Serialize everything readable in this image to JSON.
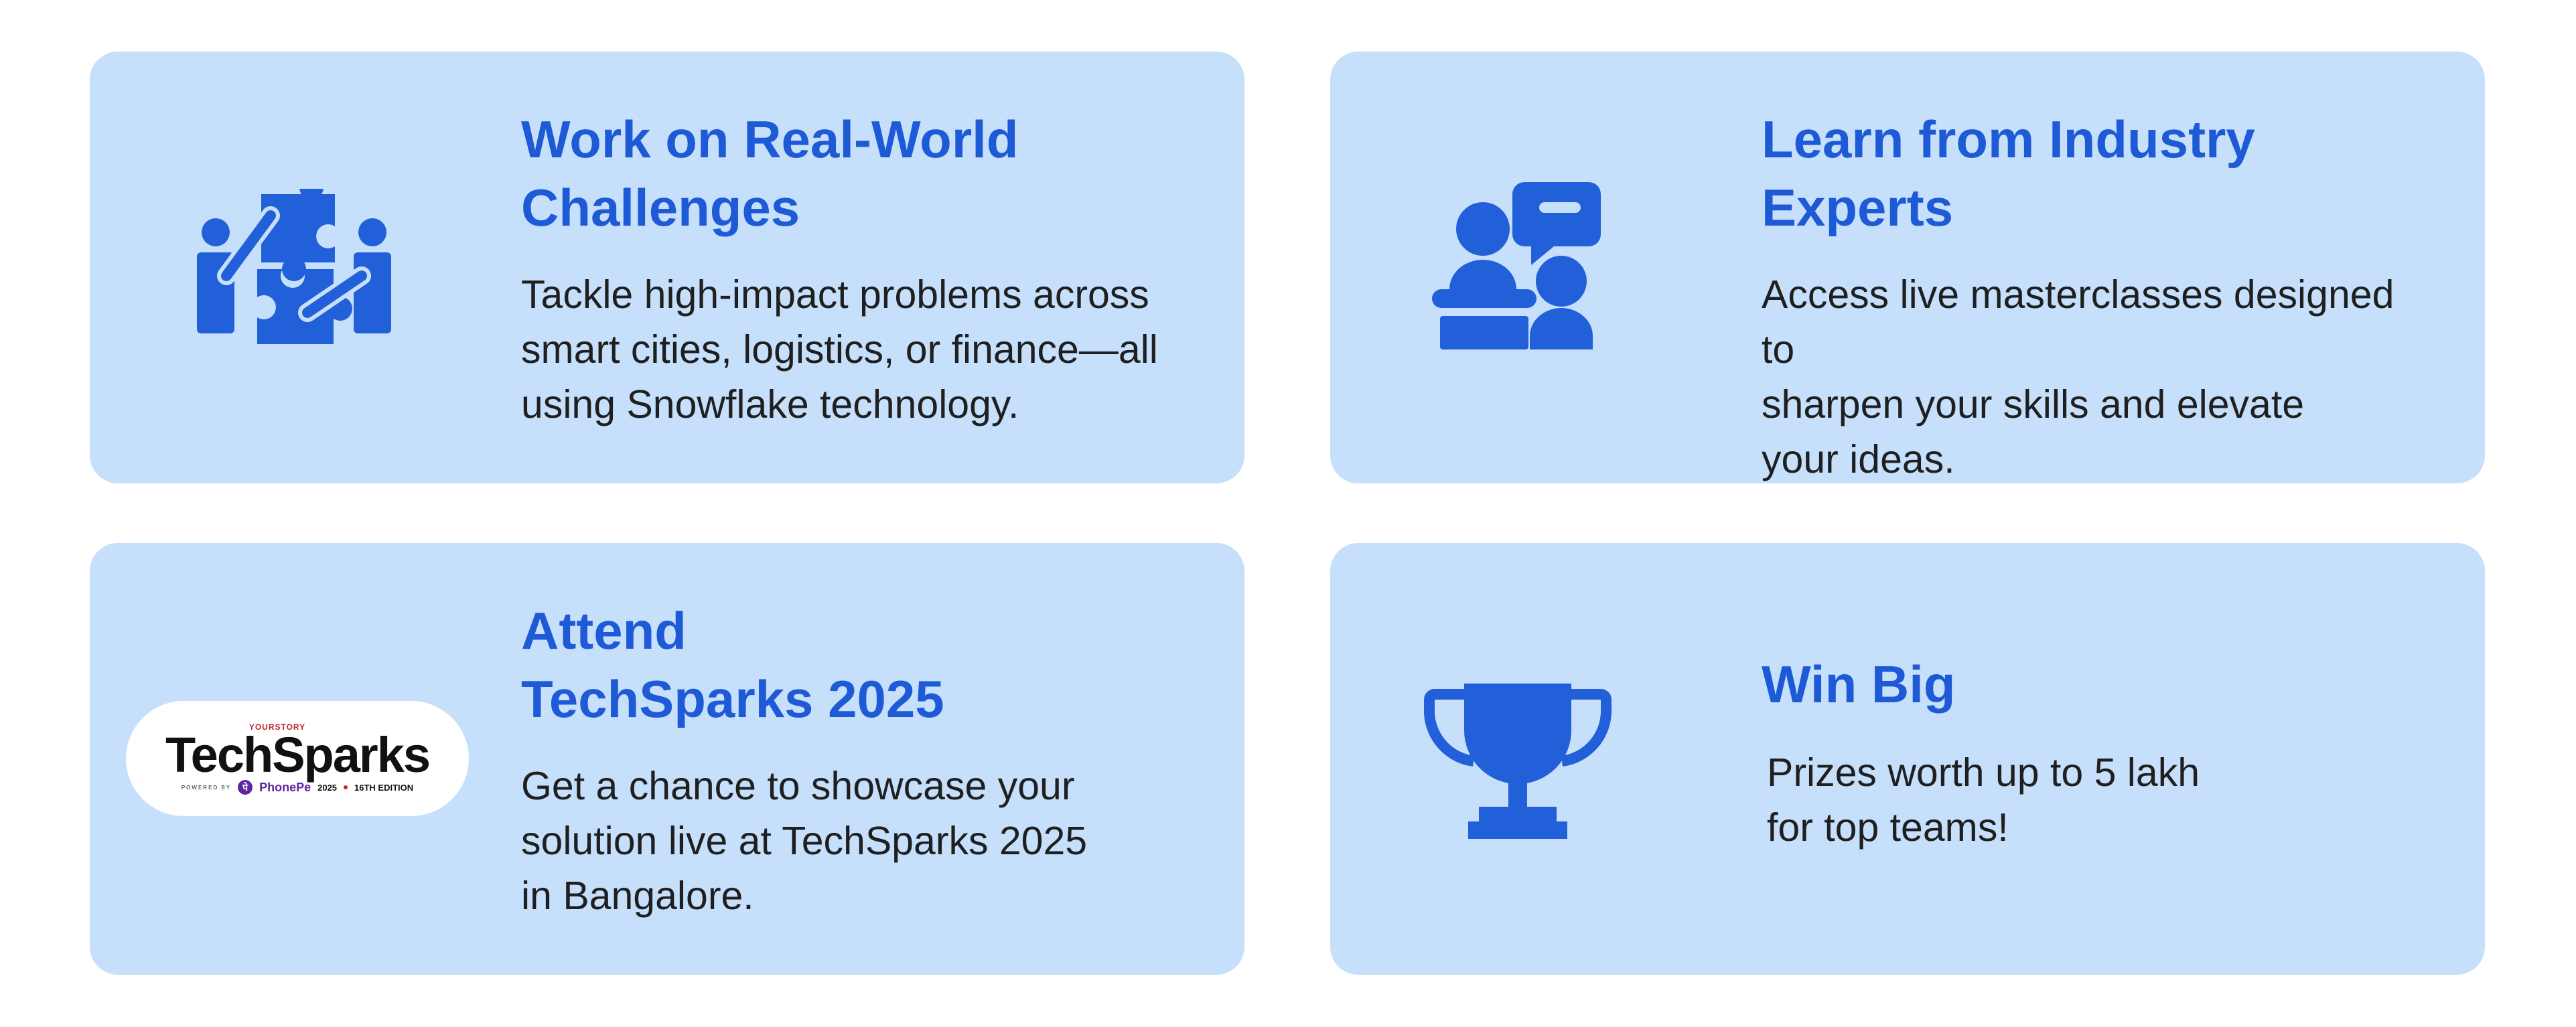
{
  "colors": {
    "card_background": "#c6dffb",
    "title_color": "#1f5ad6",
    "icon_color": "#2160d8",
    "body_text": "#1f1f1f"
  },
  "cards": [
    {
      "icon": "puzzle-people-icon",
      "title": "Work on Real-World\nChallenges",
      "description": "Tackle high-impact problems across\nsmart cities, logistics, or finance—all\nusing Snowflake technology."
    },
    {
      "icon": "presenter-speech-bubble-icon",
      "title": "Learn from Industry\nExperts",
      "description": "Access live masterclasses designed to\nsharpen your skills and elevate\nyour ideas."
    },
    {
      "icon": "techsparks-logo",
      "title": "Attend\nTechSparks 2025",
      "description": "Get a chance to showcase your\nsolution live at TechSparks 2025\nin Bangalore.",
      "logo": {
        "top": "YOURSTORY",
        "name": "TechSparks",
        "powered_by": "POWERED BY",
        "sponsor_mark": "पे",
        "sponsor": "PhonePe",
        "year": "2025",
        "edition": "16TH EDITION"
      }
    },
    {
      "icon": "trophy-icon",
      "title": "Win Big",
      "description": "Prizes worth up to 5 lakh\nfor top teams!"
    }
  ]
}
